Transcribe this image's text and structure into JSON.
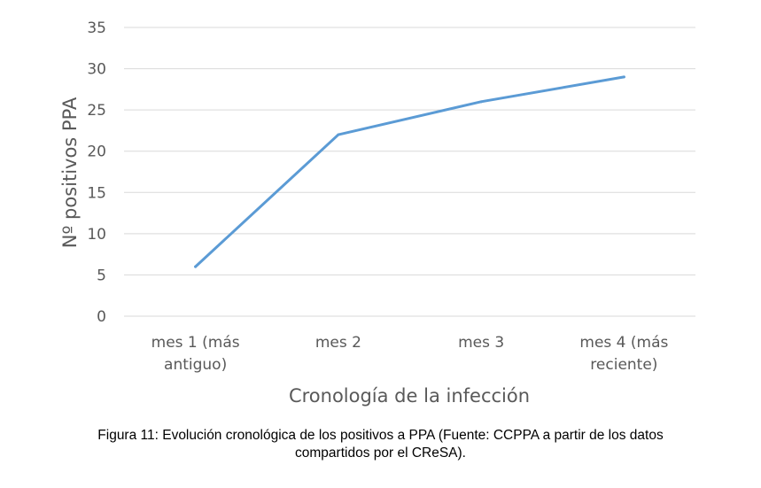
{
  "chart_data": {
    "type": "line",
    "categories": [
      [
        "mes 1 (más",
        "antiguo)"
      ],
      [
        "mes 2"
      ],
      [
        "mes 3"
      ],
      [
        "mes 4 (más",
        "reciente)"
      ]
    ],
    "series": [
      {
        "values": [
          6,
          22,
          26,
          29
        ]
      }
    ],
    "xlabel": "Cronología de la infección",
    "ylabel": "Nº positivos PPA",
    "ylim": [
      0,
      35
    ],
    "yticks": [
      0,
      5,
      10,
      15,
      20,
      25,
      30,
      35
    ],
    "grid": true,
    "colors": {
      "line": "#5b9bd5",
      "grid": "#d9d9d9",
      "text": "#595959"
    }
  },
  "caption": {
    "line1": "Figura 11: Evolución cronológica de los positivos a PPA (Fuente: CCPPA a partir de los datos",
    "line2": "compartidos por el CReSA)."
  }
}
